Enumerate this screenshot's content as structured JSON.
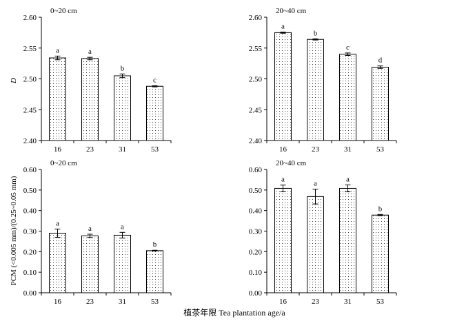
{
  "figure": {
    "x_title": "植茶年限 Tea plantation age/a",
    "y_title_top": "D",
    "y_title_bottom": "PCM (<0.005 mm)/(0.25~0.05 mm)"
  },
  "chart_data": [
    {
      "type": "bar",
      "panel": "top-left",
      "depth_label": "0~20 cm",
      "categories": [
        "16",
        "23",
        "31",
        "53"
      ],
      "values": [
        2.534,
        2.533,
        2.505,
        2.488
      ],
      "errors": [
        0.003,
        0.002,
        0.003,
        0.001
      ],
      "letters": [
        "a",
        "a",
        "b",
        "c"
      ],
      "ylim": [
        2.4,
        2.6
      ],
      "yticks": [
        "2.40",
        "2.45",
        "2.50",
        "2.55",
        "2.60"
      ]
    },
    {
      "type": "bar",
      "panel": "top-right",
      "depth_label": "20~40 cm",
      "categories": [
        "16",
        "23",
        "31",
        "53"
      ],
      "values": [
        2.575,
        2.564,
        2.54,
        2.519
      ],
      "errors": [
        0.001,
        0.001,
        0.002,
        0.002
      ],
      "letters": [
        "a",
        "b",
        "c",
        "d"
      ],
      "ylim": [
        2.4,
        2.6
      ],
      "yticks": [
        "2.40",
        "2.45",
        "2.50",
        "2.55",
        "2.60"
      ]
    },
    {
      "type": "bar",
      "panel": "bottom-left",
      "depth_label": "0~20 cm",
      "categories": [
        "16",
        "23",
        "31",
        "53"
      ],
      "values": [
        0.29,
        0.277,
        0.28,
        0.205
      ],
      "errors": [
        0.02,
        0.008,
        0.014,
        0.002
      ],
      "letters": [
        "a",
        "a",
        "a",
        "b"
      ],
      "ylim": [
        0,
        0.6
      ],
      "yticks": [
        "0.00",
        "0.10",
        "0.20",
        "0.30",
        "0.40",
        "0.50",
        "0.60"
      ]
    },
    {
      "type": "bar",
      "panel": "bottom-right",
      "depth_label": "20~40 cm",
      "categories": [
        "16",
        "23",
        "31",
        "53"
      ],
      "values": [
        0.508,
        0.468,
        0.508,
        0.378
      ],
      "errors": [
        0.016,
        0.036,
        0.017,
        0.003
      ],
      "letters": [
        "a",
        "a",
        "a",
        "b"
      ],
      "ylim": [
        0,
        0.6
      ],
      "yticks": [
        "0.00",
        "0.10",
        "0.20",
        "0.30",
        "0.40",
        "0.50",
        "0.60"
      ]
    }
  ]
}
